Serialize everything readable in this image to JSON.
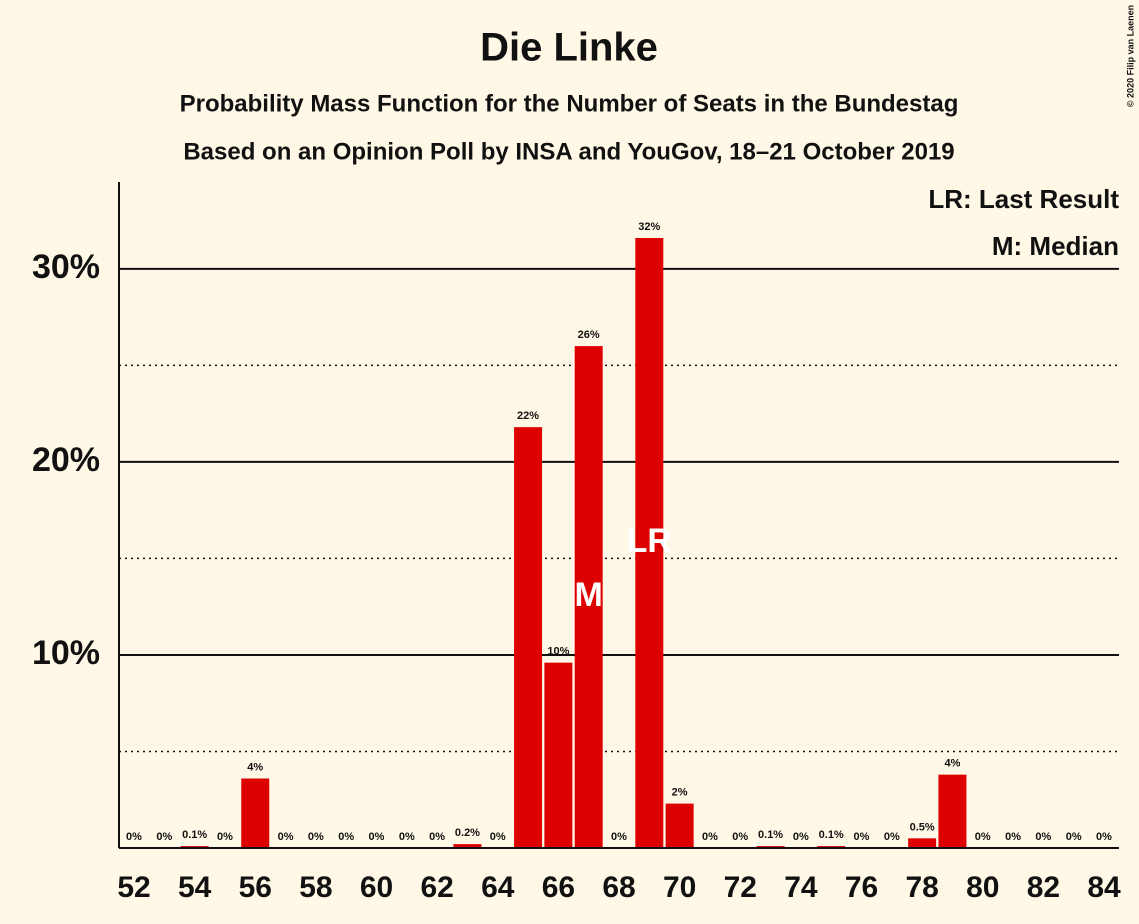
{
  "chart_data": {
    "type": "bar",
    "title": "Die Linke",
    "subtitle": "Probability Mass Function for the Number of Seats in the Bundestag",
    "subtitle2": "Based on an Opinion Poll by INSA and YouGov, 18–21 October 2019",
    "copyright": "© 2020 Filip van Laenen",
    "legend": [
      "LR: Last Result",
      "M: Median"
    ],
    "legend_position": "top-right",
    "color": "#dd0000",
    "x": [
      52,
      53,
      54,
      55,
      56,
      57,
      58,
      59,
      60,
      61,
      62,
      63,
      64,
      65,
      66,
      67,
      68,
      69,
      70,
      71,
      72,
      73,
      74,
      75,
      76,
      77,
      78,
      79,
      80,
      81,
      82,
      83,
      84
    ],
    "values": [
      0,
      0,
      0.1,
      0,
      3.6,
      0,
      0,
      0,
      0,
      0,
      0,
      0.2,
      0,
      21.8,
      9.6,
      26,
      0,
      31.6,
      2.3,
      0,
      0,
      0.1,
      0,
      0.1,
      0,
      0,
      0.5,
      3.8,
      0,
      0,
      0,
      0,
      0
    ],
    "value_labels": [
      "0%",
      "0%",
      "0.1%",
      "0%",
      "4%",
      "0%",
      "0%",
      "0%",
      "0%",
      "0%",
      "0%",
      "0.2%",
      "0%",
      "22%",
      "10%",
      "26%",
      "0%",
      "32%",
      "2%",
      "0%",
      "0%",
      "0.1%",
      "0%",
      "0.1%",
      "0%",
      "0%",
      "0.5%",
      "4%",
      "0%",
      "0%",
      "0%",
      "0%",
      "0%"
    ],
    "annotations": [
      {
        "text": "M",
        "x": 67
      },
      {
        "text": "LR",
        "x": 69
      }
    ],
    "xlim": [
      51.5,
      84.5
    ],
    "xticks": [
      52,
      54,
      56,
      58,
      60,
      62,
      64,
      66,
      68,
      70,
      72,
      74,
      76,
      78,
      80,
      82,
      84
    ],
    "ylim": [
      0,
      34.5
    ],
    "yticks": [
      {
        "value": 10,
        "label": "10%"
      },
      {
        "value": 20,
        "label": "20%"
      },
      {
        "value": 30,
        "label": "30%"
      }
    ],
    "minor_yticks": [
      5,
      15,
      25
    ],
    "grid": true
  }
}
